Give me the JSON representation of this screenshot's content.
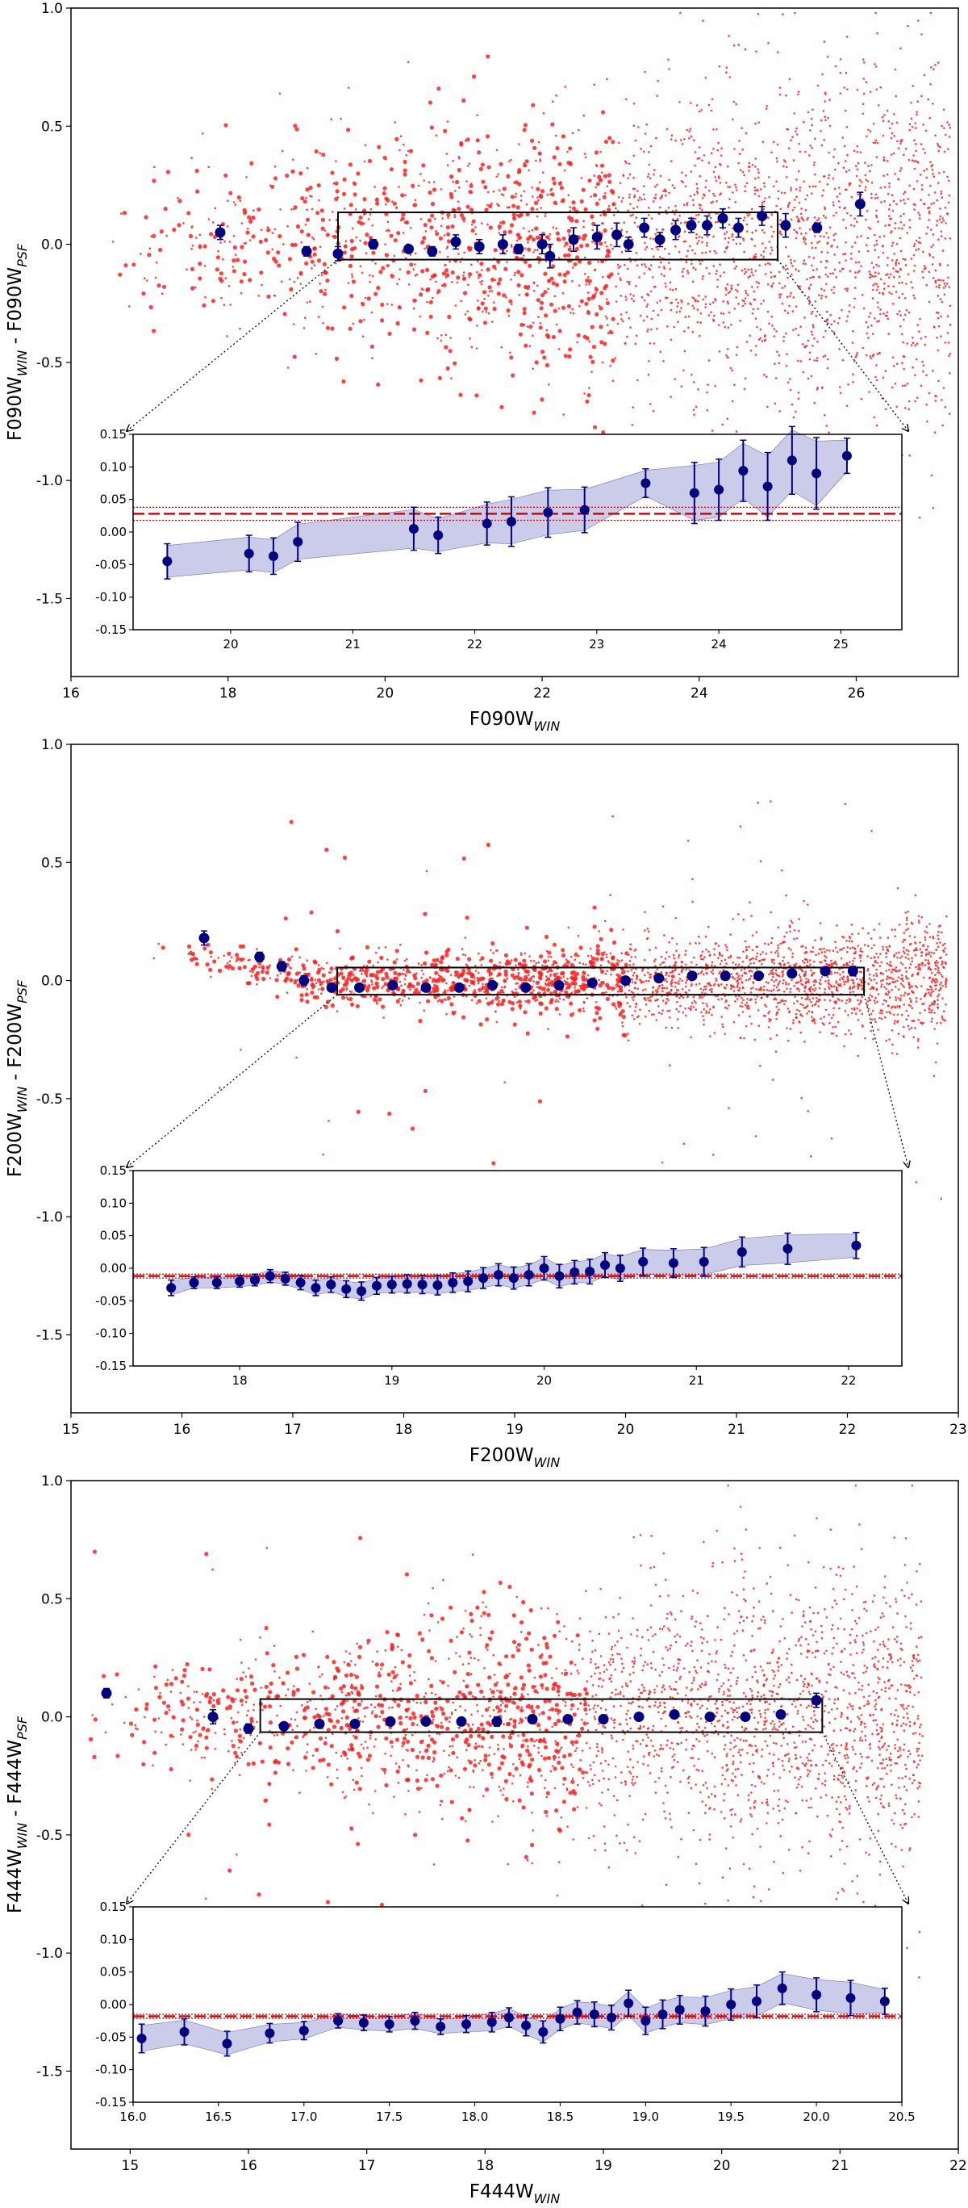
{
  "colors": {
    "scatter": "#ff2020",
    "points": "#000080",
    "band": "#8c8cd0",
    "line": "#dd0000"
  },
  "chart_data": [
    {
      "type": "scatter",
      "title": "",
      "filter": "F090W",
      "xlabel_main": "F090W",
      "xlabel_sub": "WIN",
      "ylabel_a": "F090W",
      "ylabel_a_sub": "WIN",
      "ylabel_sep": " - ",
      "ylabel_b": "F090W",
      "ylabel_b_sub": "PSF",
      "xlim": [
        16,
        27.3
      ],
      "ylim": [
        -1.83,
        1.0
      ],
      "xticks": [
        16,
        18,
        20,
        22,
        24,
        26
      ],
      "yticks": [
        -1.5,
        -1.0,
        -0.5,
        0.0,
        0.5,
        1.0
      ],
      "box": {
        "x": [
          19.4,
          25.0
        ],
        "y": [
          -0.065,
          0.135
        ]
      },
      "scatter_model": {
        "x_range": [
          16.5,
          27.2
        ],
        "count": 2800,
        "spread_bright": 0.14,
        "spread_faint": 0.4,
        "seed": 11
      },
      "binned": {
        "x": [
          17.9,
          19.0,
          19.4,
          19.85,
          20.3,
          20.6,
          20.9,
          21.2,
          21.5,
          21.7,
          22.0,
          22.1,
          22.4,
          22.7,
          22.95,
          23.1,
          23.3,
          23.5,
          23.7,
          23.9,
          24.1,
          24.3,
          24.5,
          24.8,
          25.1,
          25.5,
          26.05
        ],
        "y": [
          0.05,
          -0.03,
          -0.04,
          0.0,
          -0.02,
          -0.03,
          0.01,
          -0.01,
          0.0,
          -0.02,
          0.0,
          -0.05,
          0.02,
          0.03,
          0.04,
          0.0,
          0.07,
          0.02,
          0.06,
          0.08,
          0.08,
          0.11,
          0.07,
          0.12,
          0.08,
          0.07,
          0.17
        ],
        "err": [
          0.03,
          0.02,
          0.03,
          0.02,
          0.01,
          0.02,
          0.03,
          0.03,
          0.04,
          0.02,
          0.04,
          0.05,
          0.05,
          0.05,
          0.05,
          0.03,
          0.04,
          0.03,
          0.04,
          0.03,
          0.04,
          0.04,
          0.04,
          0.04,
          0.05,
          0.02,
          0.05
        ]
      },
      "inset": {
        "xlim": [
          19.2,
          25.5
        ],
        "ylim": [
          -0.15,
          0.15
        ],
        "xticks": [
          20,
          21,
          22,
          23,
          24,
          25
        ],
        "yticks": [
          -0.15,
          -0.1,
          -0.05,
          0.0,
          0.05,
          0.1,
          0.15
        ],
        "ref_line": 0.028,
        "ref_band": [
          0.018,
          0.038
        ],
        "x": [
          19.48,
          20.15,
          20.35,
          20.55,
          21.5,
          21.7,
          22.1,
          22.3,
          22.6,
          22.9,
          23.4,
          23.8,
          24.0,
          24.2,
          24.4,
          24.6,
          24.8,
          25.05
        ],
        "y": [
          -0.045,
          -0.033,
          -0.037,
          -0.015,
          0.005,
          -0.005,
          0.013,
          0.016,
          0.03,
          0.034,
          0.075,
          0.06,
          0.065,
          0.094,
          0.07,
          0.11,
          0.09,
          0.117
        ],
        "err": [
          0.027,
          0.028,
          0.028,
          0.03,
          0.033,
          0.028,
          0.033,
          0.038,
          0.038,
          0.035,
          0.022,
          0.047,
          0.047,
          0.047,
          0.052,
          0.052,
          0.055,
          0.027
        ]
      }
    },
    {
      "type": "scatter",
      "title": "",
      "filter": "F200W",
      "xlabel_main": "F200W",
      "xlabel_sub": "WIN",
      "ylabel_a": "F200W",
      "ylabel_a_sub": "WIN",
      "ylabel_sep": " - ",
      "ylabel_b": "F200W",
      "ylabel_b_sub": "PSF",
      "xlim": [
        15,
        23
      ],
      "ylim": [
        -1.83,
        1.0
      ],
      "xticks": [
        15,
        16,
        17,
        18,
        19,
        20,
        21,
        22,
        23
      ],
      "yticks": [
        -1.5,
        -1.0,
        -0.5,
        0.0,
        0.5,
        1.0
      ],
      "box": {
        "x": [
          17.4,
          22.15
        ],
        "y": [
          -0.06,
          0.055
        ]
      },
      "scatter_model": {
        "x_range": [
          15.7,
          22.9
        ],
        "count": 2600,
        "spread_bright": 0.03,
        "spread_faint": 0.12,
        "seed": 23
      },
      "binned": {
        "x": [
          16.2,
          16.7,
          16.9,
          17.1,
          17.35,
          17.6,
          17.9,
          18.2,
          18.5,
          18.8,
          19.1,
          19.4,
          19.7,
          20.0,
          20.3,
          20.6,
          20.9,
          21.2,
          21.5,
          21.8,
          22.05
        ],
        "y": [
          0.18,
          0.1,
          0.06,
          0.0,
          -0.03,
          -0.03,
          -0.02,
          -0.03,
          -0.03,
          -0.02,
          -0.03,
          -0.02,
          -0.01,
          0.0,
          0.01,
          0.02,
          0.02,
          0.02,
          0.03,
          0.04,
          0.04
        ],
        "err": [
          0.03,
          0.02,
          0.02,
          0.02,
          0.01,
          0.01,
          0.01,
          0.01,
          0.01,
          0.01,
          0.01,
          0.01,
          0.01,
          0.01,
          0.01,
          0.01,
          0.01,
          0.01,
          0.01,
          0.01,
          0.02
        ]
      },
      "inset": {
        "xlim": [
          17.3,
          22.35
        ],
        "ylim": [
          -0.15,
          0.15
        ],
        "xticks": [
          18,
          19,
          20,
          21,
          22
        ],
        "yticks": [
          -0.15,
          -0.1,
          -0.05,
          0.0,
          0.05,
          0.1,
          0.15
        ],
        "ref_line": -0.012,
        "ref_band": [
          -0.015,
          -0.009
        ],
        "x": [
          17.55,
          17.7,
          17.85,
          18.0,
          18.1,
          18.2,
          18.3,
          18.4,
          18.5,
          18.6,
          18.7,
          18.8,
          18.9,
          19.0,
          19.1,
          19.2,
          19.3,
          19.4,
          19.5,
          19.6,
          19.7,
          19.8,
          19.9,
          20.0,
          20.1,
          20.2,
          20.3,
          20.4,
          20.5,
          20.65,
          20.85,
          21.05,
          21.3,
          21.6,
          22.05
        ],
        "y": [
          -0.03,
          -0.022,
          -0.022,
          -0.02,
          -0.018,
          -0.012,
          -0.016,
          -0.022,
          -0.03,
          -0.025,
          -0.032,
          -0.035,
          -0.027,
          -0.025,
          -0.024,
          -0.025,
          -0.026,
          -0.022,
          -0.02,
          -0.015,
          -0.01,
          -0.015,
          -0.01,
          0.0,
          -0.012,
          -0.006,
          -0.005,
          0.005,
          0.0,
          0.01,
          0.008,
          0.01,
          0.025,
          0.03,
          0.035
        ],
        "err": [
          0.012,
          0.009,
          0.009,
          0.009,
          0.009,
          0.01,
          0.01,
          0.011,
          0.012,
          0.012,
          0.013,
          0.014,
          0.013,
          0.013,
          0.014,
          0.014,
          0.015,
          0.015,
          0.016,
          0.016,
          0.017,
          0.017,
          0.017,
          0.018,
          0.018,
          0.018,
          0.019,
          0.019,
          0.02,
          0.021,
          0.022,
          0.022,
          0.023,
          0.024,
          0.02
        ]
      }
    },
    {
      "type": "scatter",
      "title": "",
      "filter": "F444W",
      "xlabel_main": "F444W",
      "xlabel_sub": "WIN",
      "ylabel_a": "F444W",
      "ylabel_a_sub": "WIN",
      "ylabel_sep": " - ",
      "ylabel_b": "F444W",
      "ylabel_b_sub": "PSF",
      "xlim": [
        14.5,
        22
      ],
      "ylim": [
        -1.83,
        1.0
      ],
      "xticks": [
        15,
        16,
        17,
        18,
        19,
        20,
        21,
        22
      ],
      "yticks": [
        -1.5,
        -1.0,
        -0.5,
        0.0,
        0.5,
        1.0
      ],
      "box": {
        "x": [
          16.1,
          20.85
        ],
        "y": [
          -0.065,
          0.075
        ]
      },
      "scatter_model": {
        "x_range": [
          14.6,
          21.7
        ],
        "count": 2800,
        "spread_bright": 0.1,
        "spread_faint": 0.32,
        "seed": 37
      },
      "binned": {
        "x": [
          14.8,
          15.7,
          16.0,
          16.3,
          16.6,
          16.9,
          17.2,
          17.5,
          17.8,
          18.1,
          18.4,
          18.7,
          19.0,
          19.3,
          19.6,
          19.9,
          20.2,
          20.5,
          20.8
        ],
        "y": [
          0.1,
          0.0,
          -0.05,
          -0.04,
          -0.03,
          -0.03,
          -0.02,
          -0.02,
          -0.02,
          -0.02,
          -0.01,
          -0.01,
          -0.01,
          0.0,
          0.01,
          0.0,
          0.0,
          0.01,
          0.07
        ],
        "err": [
          0.02,
          0.03,
          0.02,
          0.01,
          0.01,
          0.01,
          0.01,
          0.01,
          0.01,
          0.02,
          0.01,
          0.01,
          0.01,
          0.01,
          0.01,
          0.01,
          0.01,
          0.01,
          0.03
        ]
      },
      "inset": {
        "xlim": [
          16.0,
          20.5
        ],
        "ylim": [
          -0.15,
          0.15
        ],
        "xticks": [
          16.0,
          16.5,
          17.0,
          17.5,
          18.0,
          18.5,
          19.0,
          19.5,
          20.0,
          20.5
        ],
        "yticks": [
          -0.15,
          -0.1,
          -0.05,
          0.0,
          0.05,
          0.1,
          0.15
        ],
        "ref_line": -0.018,
        "ref_band": [
          -0.021,
          -0.015
        ],
        "x": [
          16.05,
          16.3,
          16.55,
          16.8,
          17.0,
          17.2,
          17.35,
          17.5,
          17.65,
          17.8,
          17.95,
          18.1,
          18.2,
          18.3,
          18.4,
          18.5,
          18.6,
          18.7,
          18.8,
          18.9,
          19.0,
          19.1,
          19.2,
          19.35,
          19.5,
          19.65,
          19.8,
          20.0,
          20.2,
          20.4
        ],
        "y": [
          -0.052,
          -0.042,
          -0.06,
          -0.044,
          -0.04,
          -0.025,
          -0.028,
          -0.03,
          -0.025,
          -0.034,
          -0.03,
          -0.027,
          -0.02,
          -0.032,
          -0.042,
          -0.022,
          -0.012,
          -0.015,
          -0.02,
          0.002,
          -0.025,
          -0.015,
          -0.008,
          -0.01,
          0.0,
          0.005,
          0.025,
          0.015,
          0.01,
          0.005
        ],
        "err": [
          0.022,
          0.02,
          0.019,
          0.015,
          0.014,
          0.011,
          0.012,
          0.012,
          0.013,
          0.012,
          0.013,
          0.015,
          0.015,
          0.016,
          0.017,
          0.018,
          0.018,
          0.019,
          0.019,
          0.02,
          0.021,
          0.022,
          0.022,
          0.023,
          0.024,
          0.025,
          0.025,
          0.026,
          0.027,
          0.02
        ]
      }
    }
  ]
}
